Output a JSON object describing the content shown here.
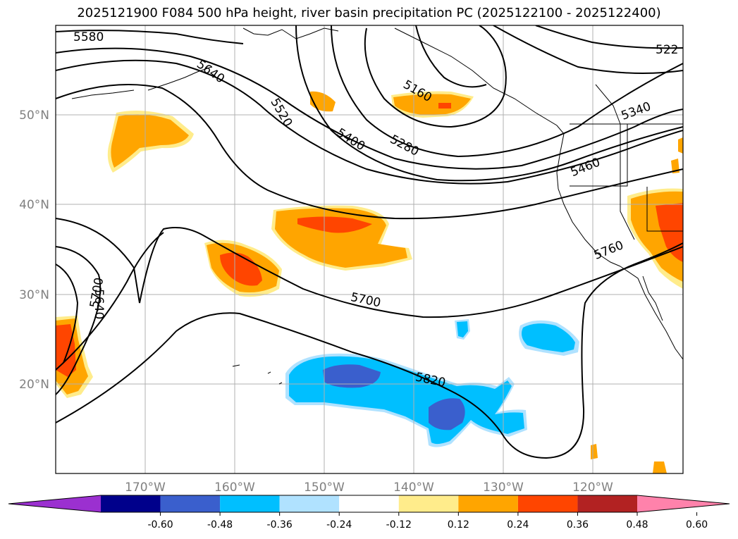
{
  "title": "2025121900 F084 500 hPa height, river basin precipitation PC (2025122100 - 2025122400)",
  "map": {
    "lon_range": [
      -180,
      -110
    ],
    "lat_range": [
      10,
      60
    ],
    "lat_ticks": [
      {
        "value": 50,
        "label": "50°N"
      },
      {
        "value": 40,
        "label": "40°N"
      },
      {
        "value": 30,
        "label": "30°N"
      },
      {
        "value": 20,
        "label": "20°N"
      }
    ],
    "lon_ticks": [
      {
        "value": -170,
        "label": "170°W"
      },
      {
        "value": -160,
        "label": "160°W"
      },
      {
        "value": -150,
        "label": "150°W"
      },
      {
        "value": -140,
        "label": "140°W"
      },
      {
        "value": -130,
        "label": "130°W"
      },
      {
        "value": -120,
        "label": "120°W"
      }
    ],
    "grid": true
  },
  "contour_labels": [
    "5580",
    "5640",
    "5520",
    "5400",
    "5280",
    "5160",
    "5340",
    "5460",
    "522",
    "5700",
    "5640",
    "5700",
    "5760",
    "5820"
  ],
  "colorbar": {
    "colors": [
      "#9b30d0",
      "#00008b",
      "#3a5fcd",
      "#00bfff",
      "#b0e2ff",
      "#ffffff",
      "#ffec8b",
      "#ffa500",
      "#ff4500",
      "#b22222",
      "#ff82ab"
    ],
    "ticks": [
      "-0.60",
      "-0.48",
      "-0.36",
      "-0.24",
      "-0.12",
      "0.12",
      "0.24",
      "0.36",
      "0.48",
      "0.60"
    ]
  }
}
